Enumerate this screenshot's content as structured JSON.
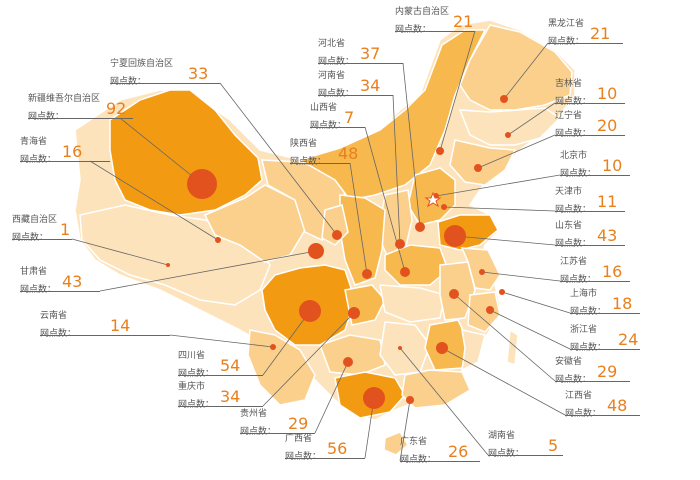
{
  "colors": {
    "dark": "#f29a12",
    "mid": "#f7b84e",
    "light": "#fbd08d",
    "pale": "#fde3bb",
    "dot": "#e2521f",
    "number": "#e8801e"
  },
  "count_label": "网点数：",
  "regions": [
    {
      "id": "xinjiang",
      "name": "新疆维吾尔自治区",
      "count": "92"
    },
    {
      "id": "qinghai",
      "name": "青海省",
      "count": "16"
    },
    {
      "id": "tibet",
      "name": "西藏自治区",
      "count": "1"
    },
    {
      "id": "gansu",
      "name": "甘肃省",
      "count": "43"
    },
    {
      "id": "yunnan",
      "name": "云南省",
      "count": "14"
    },
    {
      "id": "sichuan",
      "name": "四川省",
      "count": "54"
    },
    {
      "id": "chongqing",
      "name": "重庆市",
      "count": "34"
    },
    {
      "id": "guizhou",
      "name": "贵州省",
      "count": "29"
    },
    {
      "id": "guangxi",
      "name": "广西省",
      "count": "56"
    },
    {
      "id": "guangdong",
      "name": "广东省",
      "count": "26"
    },
    {
      "id": "hunan",
      "name": "湖南省",
      "count": "5"
    },
    {
      "id": "ningxia",
      "name": "宁夏回族自治区",
      "count": "33"
    },
    {
      "id": "shaanxi",
      "name": "陕西省",
      "count": "48"
    },
    {
      "id": "shanxi",
      "name": "山西省",
      "count": "7"
    },
    {
      "id": "henan",
      "name": "河南省",
      "count": "34"
    },
    {
      "id": "hebei",
      "name": "河北省",
      "count": "37"
    },
    {
      "id": "neimenggu",
      "name": "内蒙古自治区",
      "count": "21"
    },
    {
      "id": "heilongjiang",
      "name": "黑龙江省",
      "count": "21"
    },
    {
      "id": "jilin",
      "name": "吉林省",
      "count": "10"
    },
    {
      "id": "liaoning",
      "name": "辽宁省",
      "count": "20"
    },
    {
      "id": "beijing",
      "name": "北京市",
      "count": "10"
    },
    {
      "id": "tianjin",
      "name": "天津市",
      "count": "11"
    },
    {
      "id": "shandong",
      "name": "山东省",
      "count": "43"
    },
    {
      "id": "jiangsu",
      "name": "江苏省",
      "count": "16"
    },
    {
      "id": "shanghai",
      "name": "上海市",
      "count": "18"
    },
    {
      "id": "zhejiang",
      "name": "浙江省",
      "count": "24"
    },
    {
      "id": "anhui",
      "name": "安徽省",
      "count": "29"
    },
    {
      "id": "jiangxi",
      "name": "江西省",
      "count": "48"
    }
  ]
}
